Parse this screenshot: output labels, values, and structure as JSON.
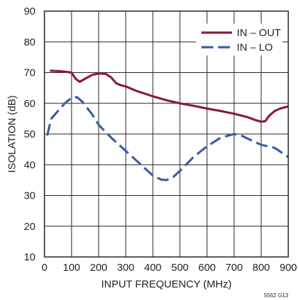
{
  "chart_data": {
    "type": "line",
    "xlabel": "INPUT FREQUENCY (MHz)",
    "ylabel": "ISOLATION (dB)",
    "xlim": [
      0,
      900
    ],
    "ylim": [
      10,
      90
    ],
    "x_ticks": [
      0,
      100,
      200,
      300,
      400,
      500,
      600,
      700,
      800,
      900
    ],
    "y_ticks": [
      10,
      20,
      30,
      40,
      50,
      60,
      70,
      80,
      90
    ],
    "grid": true,
    "legend_position": "top-right",
    "figure_id": "5562 G13",
    "series": [
      {
        "name": "IN – OUT",
        "color": "#8b1a3a",
        "style": "solid",
        "points": [
          [
            20,
            70.6
          ],
          [
            50,
            70.5
          ],
          [
            75,
            70.3
          ],
          [
            100,
            70.0
          ],
          [
            115,
            68.0
          ],
          [
            130,
            67.0
          ],
          [
            150,
            68.0
          ],
          [
            175,
            69.2
          ],
          [
            200,
            69.7
          ],
          [
            225,
            69.6
          ],
          [
            245,
            68.5
          ],
          [
            265,
            66.5
          ],
          [
            285,
            65.8
          ],
          [
            300,
            65.5
          ],
          [
            340,
            64.0
          ],
          [
            400,
            62.3
          ],
          [
            450,
            61.0
          ],
          [
            500,
            60.0
          ],
          [
            550,
            59.2
          ],
          [
            600,
            58.3
          ],
          [
            650,
            57.5
          ],
          [
            700,
            56.6
          ],
          [
            750,
            55.5
          ],
          [
            780,
            54.5
          ],
          [
            800,
            54.0
          ],
          [
            815,
            54.2
          ],
          [
            830,
            56.0
          ],
          [
            850,
            57.5
          ],
          [
            870,
            58.3
          ],
          [
            900,
            59.0
          ]
        ]
      },
      {
        "name": "IN – LO",
        "color": "#3a5ba8",
        "style": "dashed",
        "points": [
          [
            10,
            49.5
          ],
          [
            25,
            55.0
          ],
          [
            50,
            57.5
          ],
          [
            75,
            60.0
          ],
          [
            100,
            61.8
          ],
          [
            120,
            62.0
          ],
          [
            140,
            60.5
          ],
          [
            175,
            56.5
          ],
          [
            200,
            53.0
          ],
          [
            250,
            48.5
          ],
          [
            300,
            44.5
          ],
          [
            350,
            40.5
          ],
          [
            400,
            36.5
          ],
          [
            430,
            35.2
          ],
          [
            450,
            35.0
          ],
          [
            475,
            36.0
          ],
          [
            500,
            38.0
          ],
          [
            550,
            42.5
          ],
          [
            600,
            46.0
          ],
          [
            650,
            48.8
          ],
          [
            700,
            50.0
          ],
          [
            725,
            49.6
          ],
          [
            750,
            48.5
          ],
          [
            800,
            46.5
          ],
          [
            850,
            45.5
          ],
          [
            875,
            44.0
          ],
          [
            900,
            42.5
          ]
        ]
      }
    ]
  }
}
